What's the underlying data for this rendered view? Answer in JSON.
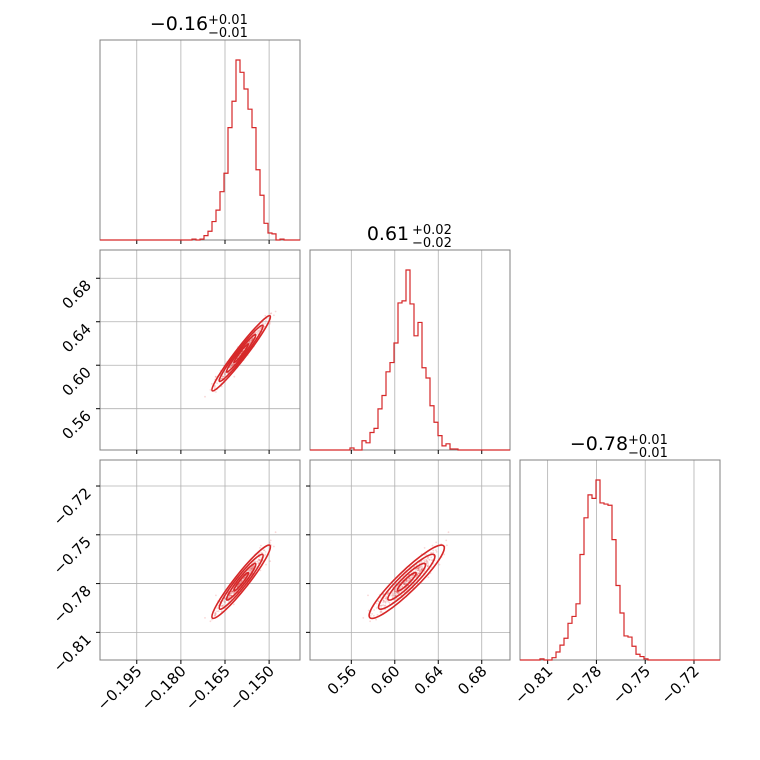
{
  "chart_data": {
    "type": "corner",
    "color": "#d62728",
    "parameters": [
      {
        "title_value": "−0.16",
        "err_plus": "+0.01",
        "err_minus": "−0.01",
        "range": [
          -0.2075,
          -0.1395
        ],
        "ticks": [
          -0.195,
          -0.18,
          -0.165,
          -0.15
        ],
        "tick_labels": [
          "−0.195",
          "−0.180",
          "−0.165",
          "−0.150"
        ],
        "mean": -0.1595,
        "sd": 0.0041
      },
      {
        "title_value": "0.61",
        "err_plus": "+0.02",
        "err_minus": "−0.02",
        "range": [
          0.522,
          0.706
        ],
        "ticks": [
          0.56,
          0.6,
          0.64,
          0.68
        ],
        "tick_labels": [
          "0.56",
          "0.60",
          "0.64",
          "0.68"
        ],
        "mean": 0.611,
        "sd": 0.0142
      },
      {
        "title_value": "−0.78",
        "err_plus": "+0.01",
        "err_minus": "−0.01",
        "range": [
          -0.827,
          -0.704
        ],
        "ticks": [
          -0.81,
          -0.78,
          -0.75,
          -0.72
        ],
        "tick_labels": [
          "−0.81",
          "−0.78",
          "−0.75",
          "−0.72"
        ],
        "mean": -0.779,
        "sd": 0.0093
      }
    ],
    "grid": true
  }
}
